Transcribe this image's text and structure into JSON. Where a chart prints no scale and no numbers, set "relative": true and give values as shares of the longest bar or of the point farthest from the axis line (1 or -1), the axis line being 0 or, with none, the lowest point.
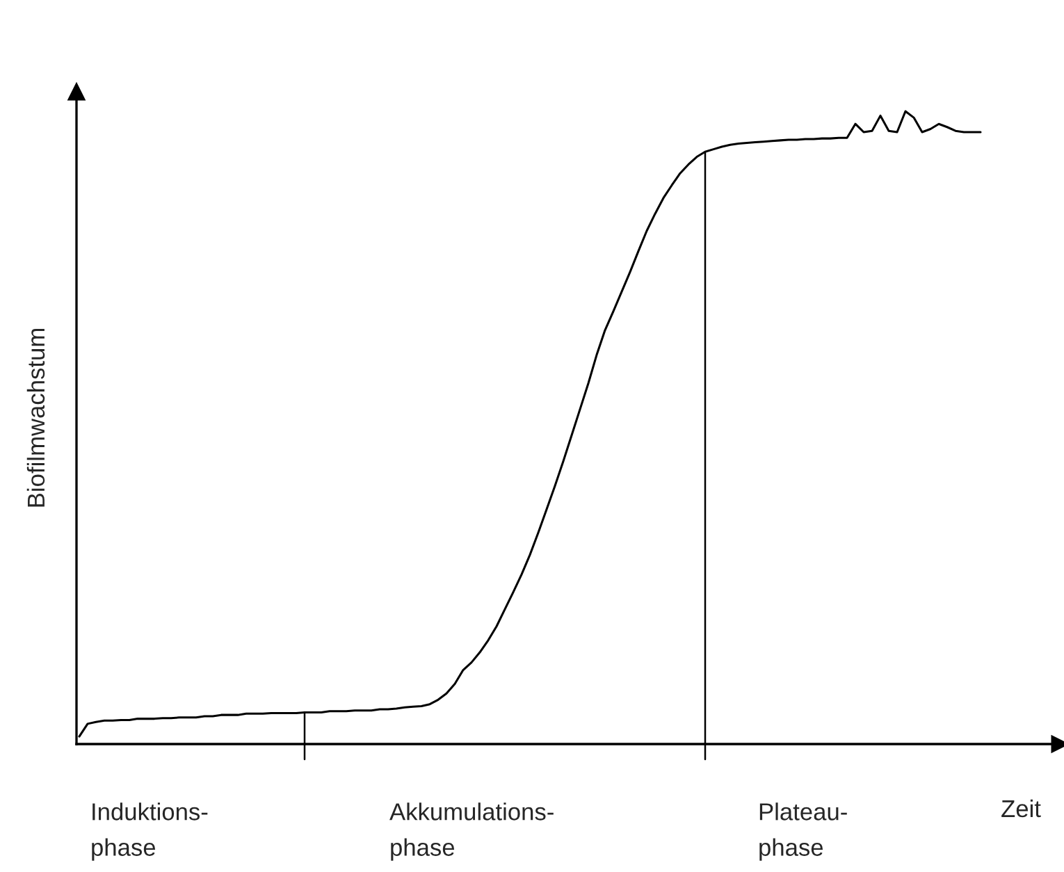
{
  "chart_data": {
    "type": "line",
    "relative": true,
    "xlabel": "Zeit",
    "ylabel": "Biofilmwachstum",
    "categories": [
      null,
      null,
      null,
      null,
      null,
      null,
      null,
      null,
      null,
      null,
      null,
      null,
      null,
      null,
      null,
      null,
      null,
      null,
      null,
      null,
      null,
      null,
      null,
      null,
      null,
      null,
      null,
      null,
      null,
      null,
      null,
      null,
      null,
      null,
      null,
      null,
      null,
      null,
      null,
      null,
      null,
      null,
      null,
      null,
      null,
      null,
      null,
      null,
      null,
      null,
      null,
      null,
      null,
      null,
      null,
      null,
      null,
      null,
      null,
      null,
      null,
      null,
      null,
      null,
      null,
      null,
      null,
      null,
      null,
      null,
      null,
      null,
      null,
      null,
      null,
      null,
      null,
      null,
      null,
      null,
      null,
      null,
      null,
      null,
      null,
      null,
      null,
      null,
      null,
      null,
      null,
      null,
      null,
      null,
      null,
      null,
      null,
      null,
      null,
      null,
      null,
      null,
      null,
      null,
      null,
      null,
      null,
      null,
      null
    ],
    "series": [
      {
        "color": "#000000",
        "values": [
          0.012,
          0.032,
          0.035,
          0.037,
          0.037,
          0.038,
          0.038,
          0.04,
          0.04,
          0.04,
          0.041,
          0.041,
          0.042,
          0.042,
          0.042,
          0.044,
          0.044,
          0.046,
          0.046,
          0.046,
          0.048,
          0.048,
          0.048,
          0.049,
          0.049,
          0.049,
          0.049,
          0.05,
          0.05,
          0.05,
          0.052,
          0.052,
          0.052,
          0.053,
          0.053,
          0.053,
          0.055,
          0.055,
          0.056,
          0.058,
          0.059,
          0.06,
          0.063,
          0.07,
          0.08,
          0.095,
          0.117,
          0.129,
          0.145,
          0.164,
          0.186,
          0.213,
          0.24,
          0.268,
          0.299,
          0.334,
          0.371,
          0.408,
          0.447,
          0.488,
          0.529,
          0.57,
          0.615,
          0.654,
          0.684,
          0.715,
          0.746,
          0.779,
          0.811,
          0.838,
          0.863,
          0.883,
          0.902,
          0.916,
          0.928,
          0.936,
          0.94,
          0.944,
          0.947,
          0.949,
          0.95,
          0.951,
          0.952,
          0.953,
          0.954,
          0.955,
          0.955,
          0.956,
          0.956,
          0.957,
          0.957,
          0.958,
          0.958,
          0.98,
          0.967,
          0.969,
          0.993,
          0.969,
          0.967,
          1,
          0.99,
          0.967,
          0.972,
          0.98,
          0.975,
          0.969,
          0.967,
          0.967,
          0.967
        ]
      }
    ],
    "annotations": [
      "Induktions-\nphase",
      "Akkumulations-\nphase",
      "Plateau-\nphase"
    ]
  }
}
